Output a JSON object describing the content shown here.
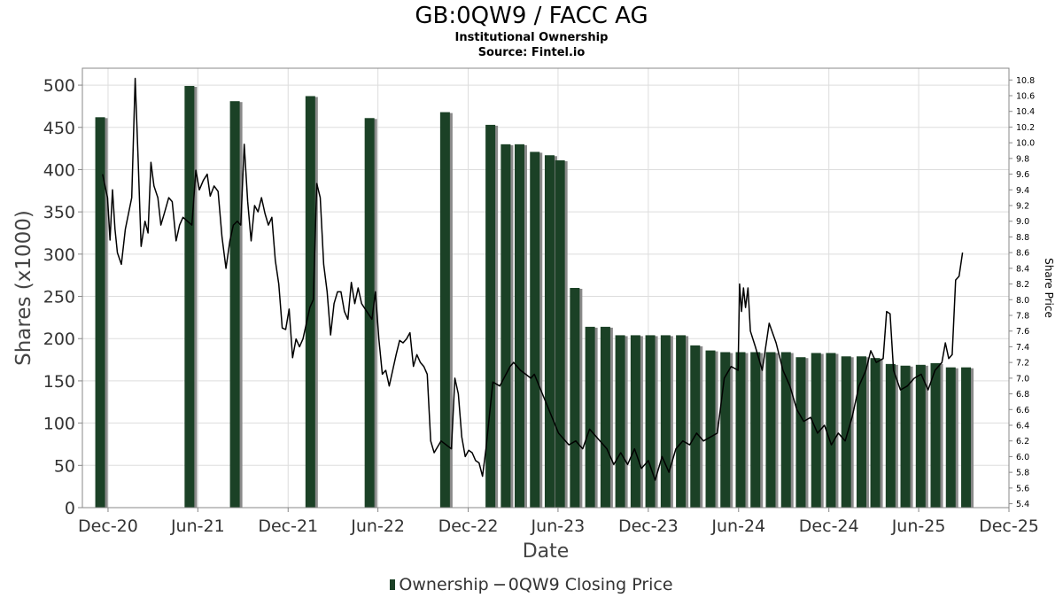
{
  "chart_data": {
    "type": "bar+line",
    "title": "GB:0QW9 / FACC AG",
    "subtitle": "Institutional Ownership",
    "source": "Source: Fintel.io",
    "xlabel": "Date",
    "ylabel": "Shares (x1000)",
    "y2label": "Share Price",
    "ylim": [
      0,
      520
    ],
    "y2lim": [
      5.35,
      10.95
    ],
    "xlim": [
      "2020-10-10",
      "2025-12-01"
    ],
    "yticks": [
      0,
      50,
      100,
      150,
      200,
      250,
      300,
      350,
      400,
      450,
      500
    ],
    "y2ticks": [
      5.4,
      5.6,
      5.8,
      6.0,
      6.2,
      6.4,
      6.6,
      6.8,
      7.0,
      7.2,
      7.4,
      7.6,
      7.8,
      8.0,
      8.2,
      8.4,
      8.6,
      8.8,
      9.0,
      9.2,
      9.4,
      9.6,
      9.8,
      10.0,
      10.2,
      10.4,
      10.6,
      10.8
    ],
    "xticks": [
      {
        "date": "2020-12-01",
        "label": "Dec-20"
      },
      {
        "date": "2021-06-01",
        "label": "Jun-21"
      },
      {
        "date": "2021-12-01",
        "label": "Dec-21"
      },
      {
        "date": "2022-06-01",
        "label": "Jun-22"
      },
      {
        "date": "2022-12-01",
        "label": "Dec-22"
      },
      {
        "date": "2023-06-01",
        "label": "Jun-23"
      },
      {
        "date": "2023-12-01",
        "label": "Dec-23"
      },
      {
        "date": "2024-06-01",
        "label": "Jun-24"
      },
      {
        "date": "2024-12-01",
        "label": "Dec-24"
      },
      {
        "date": "2025-06-01",
        "label": "Jun-25"
      },
      {
        "date": "2025-12-01",
        "label": "Dec-25"
      }
    ],
    "legend_position": "bottom",
    "grid": true,
    "colors": {
      "bar": "#1b4126",
      "bar_shadow": "#8a8a8a",
      "line": "#000000",
      "grid": "#dddddd",
      "frame": "#888888"
    },
    "series": [
      {
        "name": "Ownership",
        "type": "bar",
        "points": [
          {
            "x": "2020-11-15",
            "y": 462
          },
          {
            "x": "2021-05-15",
            "y": 499
          },
          {
            "x": "2021-08-15",
            "y": 481
          },
          {
            "x": "2022-01-15",
            "y": 487
          },
          {
            "x": "2022-05-15",
            "y": 461
          },
          {
            "x": "2022-10-15",
            "y": 468
          },
          {
            "x": "2023-01-15",
            "y": 453
          },
          {
            "x": "2023-02-15",
            "y": 430
          },
          {
            "x": "2023-03-15",
            "y": 430
          },
          {
            "x": "2023-04-15",
            "y": 421
          },
          {
            "x": "2023-05-15",
            "y": 417
          },
          {
            "x": "2023-06-05",
            "y": 411
          },
          {
            "x": "2023-07-05",
            "y": 260
          },
          {
            "x": "2023-08-05",
            "y": 214
          },
          {
            "x": "2023-09-05",
            "y": 214
          },
          {
            "x": "2023-10-05",
            "y": 204
          },
          {
            "x": "2023-11-05",
            "y": 204
          },
          {
            "x": "2023-12-05",
            "y": 204
          },
          {
            "x": "2024-01-05",
            "y": 204
          },
          {
            "x": "2024-02-05",
            "y": 204
          },
          {
            "x": "2024-03-05",
            "y": 192
          },
          {
            "x": "2024-04-05",
            "y": 186
          },
          {
            "x": "2024-05-05",
            "y": 184
          },
          {
            "x": "2024-06-05",
            "y": 184
          },
          {
            "x": "2024-07-05",
            "y": 184
          },
          {
            "x": "2024-08-05",
            "y": 184
          },
          {
            "x": "2024-09-05",
            "y": 184
          },
          {
            "x": "2024-10-05",
            "y": 178
          },
          {
            "x": "2024-11-05",
            "y": 183
          },
          {
            "x": "2024-12-05",
            "y": 183
          },
          {
            "x": "2025-01-05",
            "y": 179
          },
          {
            "x": "2025-02-05",
            "y": 179
          },
          {
            "x": "2025-03-05",
            "y": 177
          },
          {
            "x": "2025-04-05",
            "y": 170
          },
          {
            "x": "2025-05-05",
            "y": 168
          },
          {
            "x": "2025-06-05",
            "y": 169
          },
          {
            "x": "2025-07-05",
            "y": 171
          },
          {
            "x": "2025-08-05",
            "y": 166
          },
          {
            "x": "2025-09-05",
            "y": 166
          }
        ]
      },
      {
        "name": "0QW9 Closing Price",
        "type": "line",
        "points": [
          {
            "x": "2020-11-20",
            "y": 9.6
          },
          {
            "x": "2020-11-30",
            "y": 9.3
          },
          {
            "x": "2020-12-05",
            "y": 8.76
          },
          {
            "x": "2020-12-10",
            "y": 9.4
          },
          {
            "x": "2020-12-15",
            "y": 8.9
          },
          {
            "x": "2020-12-20",
            "y": 8.6
          },
          {
            "x": "2020-12-28",
            "y": 8.45
          },
          {
            "x": "2021-01-05",
            "y": 8.9
          },
          {
            "x": "2021-01-18",
            "y": 9.3
          },
          {
            "x": "2021-01-25",
            "y": 10.82
          },
          {
            "x": "2021-01-31",
            "y": 9.8
          },
          {
            "x": "2021-02-06",
            "y": 8.68
          },
          {
            "x": "2021-02-14",
            "y": 9.0
          },
          {
            "x": "2021-02-20",
            "y": 8.85
          },
          {
            "x": "2021-02-26",
            "y": 9.75
          },
          {
            "x": "2021-03-04",
            "y": 9.45
          },
          {
            "x": "2021-03-12",
            "y": 9.3
          },
          {
            "x": "2021-03-18",
            "y": 8.95
          },
          {
            "x": "2021-03-26",
            "y": 9.12
          },
          {
            "x": "2021-04-03",
            "y": 9.3
          },
          {
            "x": "2021-04-10",
            "y": 9.25
          },
          {
            "x": "2021-04-18",
            "y": 8.75
          },
          {
            "x": "2021-04-25",
            "y": 8.95
          },
          {
            "x": "2021-05-02",
            "y": 9.05
          },
          {
            "x": "2021-05-20",
            "y": 8.95
          },
          {
            "x": "2021-05-28",
            "y": 9.65
          },
          {
            "x": "2021-06-04",
            "y": 9.4
          },
          {
            "x": "2021-06-12",
            "y": 9.52
          },
          {
            "x": "2021-06-20",
            "y": 9.6
          },
          {
            "x": "2021-06-26",
            "y": 9.32
          },
          {
            "x": "2021-07-04",
            "y": 9.45
          },
          {
            "x": "2021-07-12",
            "y": 9.38
          },
          {
            "x": "2021-07-20",
            "y": 8.8
          },
          {
            "x": "2021-07-28",
            "y": 8.4
          },
          {
            "x": "2021-08-05",
            "y": 8.75
          },
          {
            "x": "2021-08-12",
            "y": 8.95
          },
          {
            "x": "2021-08-20",
            "y": 9.0
          },
          {
            "x": "2021-08-27",
            "y": 8.95
          },
          {
            "x": "2021-09-03",
            "y": 9.98
          },
          {
            "x": "2021-09-10",
            "y": 9.25
          },
          {
            "x": "2021-09-17",
            "y": 8.75
          },
          {
            "x": "2021-09-24",
            "y": 9.2
          },
          {
            "x": "2021-10-01",
            "y": 9.12
          },
          {
            "x": "2021-10-08",
            "y": 9.3
          },
          {
            "x": "2021-10-15",
            "y": 9.1
          },
          {
            "x": "2021-10-22",
            "y": 8.95
          },
          {
            "x": "2021-10-29",
            "y": 9.05
          },
          {
            "x": "2021-11-05",
            "y": 8.5
          },
          {
            "x": "2021-11-12",
            "y": 8.2
          },
          {
            "x": "2021-11-19",
            "y": 7.64
          },
          {
            "x": "2021-11-26",
            "y": 7.62
          },
          {
            "x": "2021-12-03",
            "y": 7.88
          },
          {
            "x": "2021-12-10",
            "y": 7.26
          },
          {
            "x": "2021-12-17",
            "y": 7.5
          },
          {
            "x": "2021-12-24",
            "y": 7.4
          },
          {
            "x": "2021-12-31",
            "y": 7.5
          },
          {
            "x": "2022-01-07",
            "y": 7.7
          },
          {
            "x": "2022-01-14",
            "y": 7.9
          },
          {
            "x": "2022-01-21",
            "y": 8.0
          },
          {
            "x": "2022-01-28",
            "y": 9.48
          },
          {
            "x": "2022-02-04",
            "y": 9.3
          },
          {
            "x": "2022-02-11",
            "y": 8.45
          },
          {
            "x": "2022-02-18",
            "y": 8.1
          },
          {
            "x": "2022-02-25",
            "y": 7.55
          },
          {
            "x": "2022-03-04",
            "y": 7.95
          },
          {
            "x": "2022-03-11",
            "y": 8.1
          },
          {
            "x": "2022-03-18",
            "y": 8.1
          },
          {
            "x": "2022-03-25",
            "y": 7.85
          },
          {
            "x": "2022-04-01",
            "y": 7.75
          },
          {
            "x": "2022-04-08",
            "y": 8.22
          },
          {
            "x": "2022-04-15",
            "y": 7.95
          },
          {
            "x": "2022-04-22",
            "y": 8.15
          },
          {
            "x": "2022-04-29",
            "y": 7.95
          },
          {
            "x": "2022-05-20",
            "y": 7.75
          },
          {
            "x": "2022-05-27",
            "y": 8.1
          },
          {
            "x": "2022-06-03",
            "y": 7.5
          },
          {
            "x": "2022-06-10",
            "y": 7.05
          },
          {
            "x": "2022-06-17",
            "y": 7.1
          },
          {
            "x": "2022-06-24",
            "y": 6.9
          },
          {
            "x": "2022-07-01",
            "y": 7.1
          },
          {
            "x": "2022-07-08",
            "y": 7.3
          },
          {
            "x": "2022-07-15",
            "y": 7.48
          },
          {
            "x": "2022-07-22",
            "y": 7.45
          },
          {
            "x": "2022-07-29",
            "y": 7.5
          },
          {
            "x": "2022-08-05",
            "y": 7.58
          },
          {
            "x": "2022-08-12",
            "y": 7.15
          },
          {
            "x": "2022-08-19",
            "y": 7.3
          },
          {
            "x": "2022-08-26",
            "y": 7.2
          },
          {
            "x": "2022-09-02",
            "y": 7.15
          },
          {
            "x": "2022-09-09",
            "y": 7.05
          },
          {
            "x": "2022-09-16",
            "y": 6.2
          },
          {
            "x": "2022-09-23",
            "y": 6.05
          },
          {
            "x": "2022-10-07",
            "y": 6.2
          },
          {
            "x": "2022-10-28",
            "y": 6.1
          },
          {
            "x": "2022-11-04",
            "y": 7.0
          },
          {
            "x": "2022-11-11",
            "y": 6.8
          },
          {
            "x": "2022-11-18",
            "y": 6.25
          },
          {
            "x": "2022-11-25",
            "y": 6.0
          },
          {
            "x": "2022-12-02",
            "y": 6.08
          },
          {
            "x": "2022-12-09",
            "y": 6.05
          },
          {
            "x": "2022-12-16",
            "y": 5.95
          },
          {
            "x": "2022-12-23",
            "y": 5.92
          },
          {
            "x": "2022-12-30",
            "y": 5.75
          },
          {
            "x": "2023-01-06",
            "y": 6.1
          },
          {
            "x": "2023-01-20",
            "y": 6.95
          },
          {
            "x": "2023-02-03",
            "y": 6.9
          },
          {
            "x": "2023-02-24",
            "y": 7.15
          },
          {
            "x": "2023-03-03",
            "y": 7.2
          },
          {
            "x": "2023-03-17",
            "y": 7.1
          },
          {
            "x": "2023-04-07",
            "y": 7.0
          },
          {
            "x": "2023-04-14",
            "y": 7.05
          },
          {
            "x": "2023-06-02",
            "y": 6.3
          },
          {
            "x": "2023-06-23",
            "y": 6.15
          },
          {
            "x": "2023-07-07",
            "y": 6.2
          },
          {
            "x": "2023-07-21",
            "y": 6.1
          },
          {
            "x": "2023-08-04",
            "y": 6.35
          },
          {
            "x": "2023-08-25",
            "y": 6.2
          },
          {
            "x": "2023-09-08",
            "y": 6.1
          },
          {
            "x": "2023-09-22",
            "y": 5.9
          },
          {
            "x": "2023-10-06",
            "y": 6.05
          },
          {
            "x": "2023-10-20",
            "y": 5.9
          },
          {
            "x": "2023-11-03",
            "y": 6.1
          },
          {
            "x": "2023-11-17",
            "y": 5.85
          },
          {
            "x": "2023-12-01",
            "y": 5.95
          },
          {
            "x": "2023-12-15",
            "y": 5.7
          },
          {
            "x": "2023-12-29",
            "y": 6.0
          },
          {
            "x": "2024-01-12",
            "y": 5.8
          },
          {
            "x": "2024-01-26",
            "y": 6.1
          },
          {
            "x": "2024-02-09",
            "y": 6.2
          },
          {
            "x": "2024-02-23",
            "y": 6.15
          },
          {
            "x": "2024-03-08",
            "y": 6.3
          },
          {
            "x": "2024-03-22",
            "y": 6.2
          },
          {
            "x": "2024-04-05",
            "y": 6.25
          },
          {
            "x": "2024-04-19",
            "y": 6.3
          },
          {
            "x": "2024-05-03",
            "y": 7.0
          },
          {
            "x": "2024-05-17",
            "y": 7.15
          },
          {
            "x": "2024-05-31",
            "y": 7.1
          },
          {
            "x": "2024-06-03",
            "y": 8.2
          },
          {
            "x": "2024-06-07",
            "y": 7.85
          },
          {
            "x": "2024-06-11",
            "y": 8.15
          },
          {
            "x": "2024-06-15",
            "y": 7.9
          },
          {
            "x": "2024-06-20",
            "y": 8.15
          },
          {
            "x": "2024-06-25",
            "y": 7.6
          },
          {
            "x": "2024-07-05",
            "y": 7.4
          },
          {
            "x": "2024-07-19",
            "y": 7.1
          },
          {
            "x": "2024-08-02",
            "y": 7.7
          },
          {
            "x": "2024-08-16",
            "y": 7.45
          },
          {
            "x": "2024-08-30",
            "y": 7.1
          },
          {
            "x": "2024-09-13",
            "y": 6.9
          },
          {
            "x": "2024-09-27",
            "y": 6.6
          },
          {
            "x": "2024-10-11",
            "y": 6.45
          },
          {
            "x": "2024-10-25",
            "y": 6.5
          },
          {
            "x": "2024-11-08",
            "y": 6.3
          },
          {
            "x": "2024-11-22",
            "y": 6.4
          },
          {
            "x": "2024-12-06",
            "y": 6.15
          },
          {
            "x": "2024-12-20",
            "y": 6.3
          },
          {
            "x": "2025-01-03",
            "y": 6.2
          },
          {
            "x": "2025-01-17",
            "y": 6.5
          },
          {
            "x": "2025-01-31",
            "y": 6.9
          },
          {
            "x": "2025-02-14",
            "y": 7.1
          },
          {
            "x": "2025-02-24",
            "y": 7.35
          },
          {
            "x": "2025-03-07",
            "y": 7.2
          },
          {
            "x": "2025-03-21",
            "y": 7.25
          },
          {
            "x": "2025-03-28",
            "y": 7.85
          },
          {
            "x": "2025-04-04",
            "y": 7.82
          },
          {
            "x": "2025-04-11",
            "y": 7.1
          },
          {
            "x": "2025-04-25",
            "y": 6.85
          },
          {
            "x": "2025-05-09",
            "y": 6.9
          },
          {
            "x": "2025-05-23",
            "y": 7.0
          },
          {
            "x": "2025-06-06",
            "y": 7.05
          },
          {
            "x": "2025-06-20",
            "y": 6.85
          },
          {
            "x": "2025-07-04",
            "y": 7.1
          },
          {
            "x": "2025-07-18",
            "y": 7.2
          },
          {
            "x": "2025-07-25",
            "y": 7.45
          },
          {
            "x": "2025-08-01",
            "y": 7.25
          },
          {
            "x": "2025-08-08",
            "y": 7.3
          },
          {
            "x": "2025-08-15",
            "y": 8.25
          },
          {
            "x": "2025-08-22",
            "y": 8.3
          },
          {
            "x": "2025-08-29",
            "y": 8.6
          }
        ]
      }
    ]
  }
}
